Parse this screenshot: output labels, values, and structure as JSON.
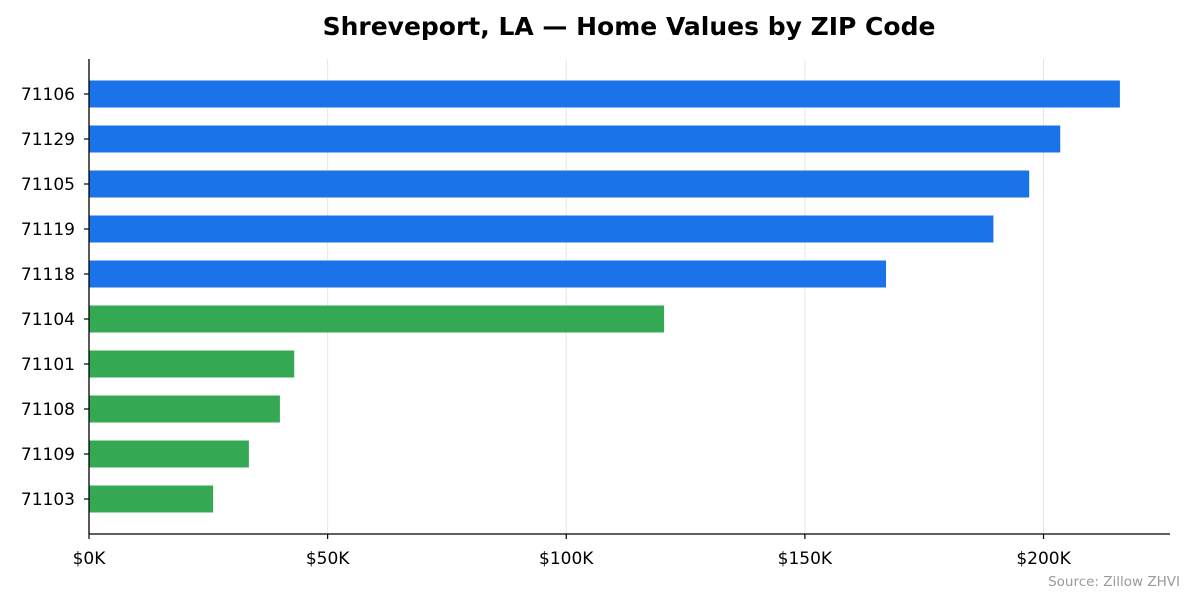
{
  "chart_data": {
    "type": "bar",
    "orientation": "horizontal",
    "title": "Shreveport, LA — Home Values by ZIP Code",
    "xlabel": "",
    "ylabel": "",
    "categories": [
      "71106",
      "71129",
      "71105",
      "71119",
      "71118",
      "71104",
      "71101",
      "71108",
      "71109",
      "71103"
    ],
    "values": [
      216000,
      203500,
      197000,
      189500,
      167000,
      120500,
      43000,
      40000,
      33500,
      26000
    ],
    "bar_colors": [
      "#1a73e8",
      "#1a73e8",
      "#1a73e8",
      "#1a73e8",
      "#1a73e8",
      "#34a853",
      "#34a853",
      "#34a853",
      "#34a853",
      "#34a853"
    ],
    "xlim": [
      0,
      226500
    ],
    "xticks": [
      0,
      50000,
      100000,
      150000,
      200000
    ],
    "xtick_labels": [
      "$0K",
      "$50K",
      "$100K",
      "$150K",
      "$200K"
    ],
    "grid": "vertical",
    "legend": "none"
  },
  "source_note": "Source: Zillow ZHVI"
}
